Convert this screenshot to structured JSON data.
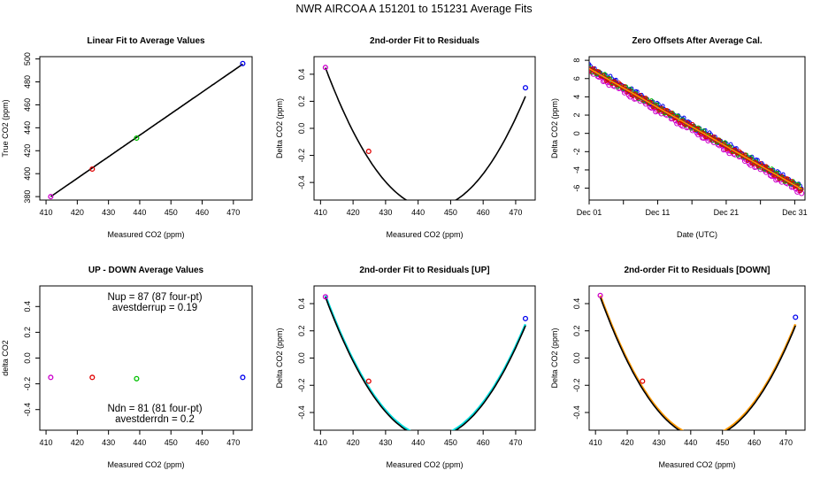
{
  "title": "NWR   AIRCOA A   151201 to 151231   Average Fits",
  "colors": {
    "purple": "#cc00cc",
    "red": "#e00000",
    "green": "#00c000",
    "blue": "#0000ee",
    "cyan": "#00dddd",
    "orange": "#ff9900",
    "black": "#000000"
  },
  "chart_data": [
    {
      "id": "p1",
      "type": "scatter",
      "title": "Linear Fit to Average Values",
      "xlabel": "Measured CO2 (ppm)",
      "ylabel": "True CO2 (ppm)",
      "xlim": [
        408,
        476
      ],
      "ylim": [
        377,
        502
      ],
      "xticks": [
        410,
        420,
        430,
        440,
        450,
        460,
        470
      ],
      "yticks": [
        380,
        400,
        420,
        440,
        460,
        480,
        500
      ],
      "points": [
        {
          "x": 411.5,
          "y": 380,
          "color": "purple"
        },
        {
          "x": 424.8,
          "y": 404,
          "color": "red"
        },
        {
          "x": 439.0,
          "y": 431,
          "color": "green"
        },
        {
          "x": 473.0,
          "y": 496,
          "color": "blue"
        }
      ],
      "fit": {
        "kind": "linear",
        "slope": 1.878,
        "intercept": -392.8,
        "x_range": [
          411.5,
          473
        ]
      }
    },
    {
      "id": "p2",
      "type": "scatter",
      "title": "2nd-order Fit to Residuals",
      "xlabel": "Measured CO2 (ppm)",
      "ylabel": "Delta CO2 (ppm)",
      "xlim": [
        408,
        476
      ],
      "ylim": [
        -0.53,
        0.53
      ],
      "xticks": [
        410,
        420,
        430,
        440,
        450,
        460,
        470
      ],
      "yticks": [
        -0.4,
        -0.2,
        0.0,
        0.2,
        0.4
      ],
      "points": [
        {
          "x": 411.5,
          "y": 0.45,
          "color": "purple"
        },
        {
          "x": 424.8,
          "y": -0.17,
          "color": "red"
        },
        {
          "x": 473.0,
          "y": 0.3,
          "color": "blue"
        }
      ],
      "fit": {
        "kind": "quad",
        "x0": 444,
        "a": 0.00098,
        "c": -0.587,
        "x_range": [
          411.5,
          473
        ]
      }
    },
    {
      "id": "p3",
      "type": "scatter",
      "title": "Zero Offsets After Average Cal.",
      "xlabel": "Date (UTC)",
      "ylabel": "Delta CO2 (ppm)",
      "xlim": [
        0,
        31.5
      ],
      "ylim": [
        -7.3,
        8.4
      ],
      "xticks_labeled": [
        {
          "v": 0,
          "label": "Dec 01"
        },
        {
          "v": 10,
          "label": "Dec 11"
        },
        {
          "v": 20,
          "label": "Dec 21"
        },
        {
          "v": 30,
          "label": "Dec 31"
        }
      ],
      "xticks_minor": [
        5,
        15,
        25
      ],
      "yticks": [
        -6,
        -4,
        -2,
        0,
        2,
        4,
        6,
        8
      ],
      "trend": {
        "start": 7.1,
        "end": -6.1,
        "x_range": [
          0,
          31
        ]
      },
      "series": [
        {
          "name": "purple",
          "offset": -0.25,
          "color": "purple"
        },
        {
          "name": "blue",
          "offset": 0.18,
          "color": "blue"
        },
        {
          "name": "green",
          "offset": 0.05,
          "color": "green"
        },
        {
          "name": "red",
          "offset": 0.0,
          "color": "red"
        }
      ]
    },
    {
      "id": "p4",
      "type": "scatter",
      "title": "UP - DOWN Average Values",
      "xlabel": "Measured CO2 (ppm)",
      "ylabel": "delta CO2",
      "xlim": [
        408,
        476
      ],
      "ylim": [
        -0.56,
        0.56
      ],
      "xticks": [
        410,
        420,
        430,
        440,
        450,
        460,
        470
      ],
      "yticks": [
        -0.4,
        -0.2,
        0.0,
        0.2,
        0.4
      ],
      "points": [
        {
          "x": 411.5,
          "y": -0.15,
          "color": "purple"
        },
        {
          "x": 424.8,
          "y": -0.15,
          "color": "red"
        },
        {
          "x": 439.0,
          "y": -0.16,
          "color": "green"
        },
        {
          "x": 473.0,
          "y": -0.15,
          "color": "blue"
        }
      ],
      "annotations": {
        "nup": "Nup = 87 (87 four-pt)",
        "avup": "avestderrup =  0.19",
        "ndn": "Ndn = 81 (81 four-pt)",
        "avdn": "avestderrdn =  0.2"
      }
    },
    {
      "id": "p5",
      "type": "scatter",
      "title": "2nd-order Fit to Residuals [UP]",
      "xlabel": "Measured CO2 (ppm)",
      "ylabel": "Delta CO2 (ppm)",
      "xlim": [
        408,
        476
      ],
      "ylim": [
        -0.53,
        0.53
      ],
      "xticks": [
        410,
        420,
        430,
        440,
        450,
        460,
        470
      ],
      "yticks": [
        -0.4,
        -0.2,
        0.0,
        0.2,
        0.4
      ],
      "points": [
        {
          "x": 411.5,
          "y": 0.45,
          "color": "purple"
        },
        {
          "x": 424.8,
          "y": -0.17,
          "color": "red"
        },
        {
          "x": 473.0,
          "y": 0.29,
          "color": "blue"
        }
      ],
      "fit": {
        "kind": "quad",
        "x0": 444,
        "a": 0.00098,
        "c": -0.587,
        "x_range": [
          411.5,
          473
        ],
        "band_color": "cyan"
      }
    },
    {
      "id": "p6",
      "type": "scatter",
      "title": "2nd-order Fit to Residuals [DOWN]",
      "xlabel": "Measured CO2 (ppm)",
      "ylabel": "Delta CO2 (ppm)",
      "xlim": [
        408,
        476
      ],
      "ylim": [
        -0.53,
        0.53
      ],
      "xticks": [
        410,
        420,
        430,
        440,
        450,
        460,
        470
      ],
      "yticks": [
        -0.4,
        -0.2,
        0.0,
        0.2,
        0.4
      ],
      "points": [
        {
          "x": 411.5,
          "y": 0.46,
          "color": "purple"
        },
        {
          "x": 424.8,
          "y": -0.17,
          "color": "red"
        },
        {
          "x": 473.0,
          "y": 0.3,
          "color": "blue"
        }
      ],
      "fit": {
        "kind": "quad",
        "x0": 444,
        "a": 0.00098,
        "c": -0.587,
        "x_range": [
          411.5,
          473
        ],
        "band_color": "orange"
      }
    }
  ]
}
